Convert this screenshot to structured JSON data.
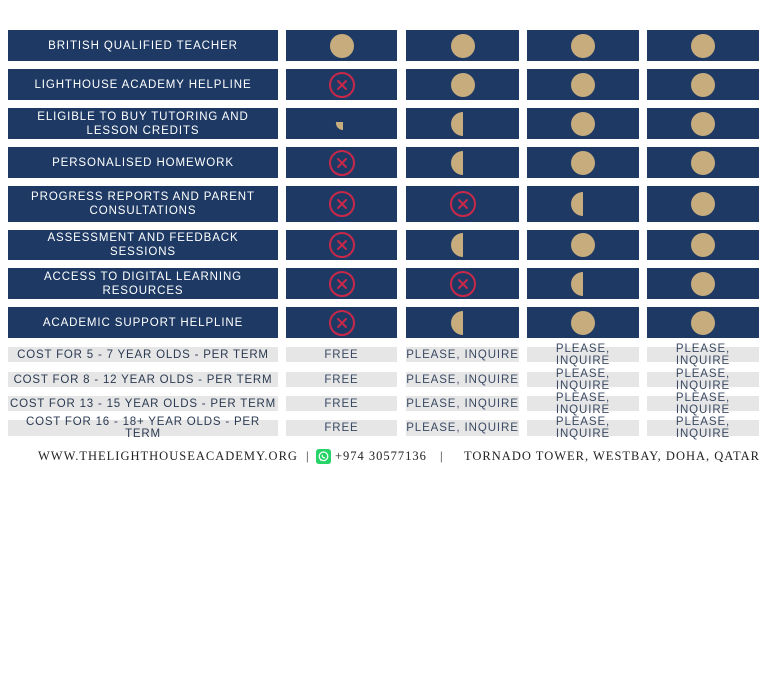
{
  "colors": {
    "navy": "#1e3a64",
    "grey": "#e6e6e6",
    "gold": "#c7ad7d",
    "red": "#c8284a",
    "whatsapp": "#25d366"
  },
  "feature_rows": [
    {
      "label": "BRITISH QUALIFIED TEACHER",
      "values": [
        "full",
        "full",
        "full",
        "full"
      ]
    },
    {
      "label": "LIGHTHOUSE ACADEMY HELPLINE",
      "values": [
        "none",
        "full",
        "full",
        "full"
      ]
    },
    {
      "label": "ELIGIBLE TO BUY TUTORING AND LESSON CREDITS",
      "values": [
        "quarter",
        "half",
        "full",
        "full"
      ]
    },
    {
      "label": "PERSONALISED HOMEWORK",
      "values": [
        "none",
        "half",
        "full",
        "full"
      ]
    },
    {
      "label": "PROGRESS REPORTS AND PARENT CONSULTATIONS",
      "values": [
        "none",
        "none",
        "half",
        "full"
      ]
    },
    {
      "label": "ASSESSMENT AND FEEDBACK SESSIONS",
      "values": [
        "none",
        "half",
        "full",
        "full"
      ]
    },
    {
      "label": "ACCESS TO DIGITAL LEARNING RESOURCES",
      "values": [
        "none",
        "none",
        "half",
        "full"
      ]
    },
    {
      "label": "ACADEMIC SUPPORT HELPLINE",
      "values": [
        "none",
        "half",
        "full",
        "full"
      ]
    }
  ],
  "cost_rows": [
    {
      "label": "COST FOR 5 - 7 YEAR OLDS - PER TERM",
      "values": [
        "FREE",
        "PLEASE, INQUIRE",
        "PLEASE, INQUIRE",
        "PLEASE, INQUIRE"
      ]
    },
    {
      "label": "COST FOR 8 - 12 YEAR OLDS - PER TERM",
      "values": [
        "FREE",
        "PLEASE, INQUIRE",
        "PLEASE, INQUIRE",
        "PLEASE, INQUIRE"
      ]
    },
    {
      "label": "COST FOR 13 - 15 YEAR OLDS - PER TERM",
      "values": [
        "FREE",
        "PLEASE, INQUIRE",
        "PLEASE, INQUIRE",
        "PLEASE, INQUIRE"
      ]
    },
    {
      "label": "COST FOR 16 - 18+ YEAR OLDS - PER TERM",
      "values": [
        "FREE",
        "PLEASE, INQUIRE",
        "PLEASE, INQUIRE",
        "PLEASE, INQUIRE"
      ]
    }
  ],
  "footer": {
    "website": "WWW.THELIGHTHOUSEACADEMY.ORG",
    "sep1": "|",
    "phone_icon": "whatsapp-icon",
    "phone": "+974 30577136",
    "sep2": "|",
    "address": "TORNADO TOWER, WESTBAY, DOHA, QATAR"
  }
}
